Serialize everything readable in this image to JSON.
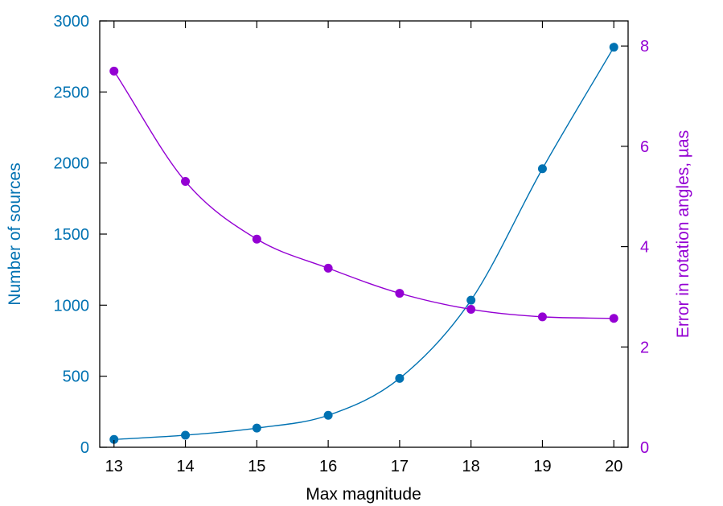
{
  "chart_data": {
    "type": "line",
    "xlabel": "Max magnitude",
    "x": [
      13,
      14,
      15,
      16,
      17,
      18,
      19,
      20
    ],
    "xlim": [
      12.8,
      20.2
    ],
    "xticks": [
      13,
      14,
      15,
      16,
      17,
      18,
      19,
      20
    ],
    "grid": false,
    "y_left": {
      "label": "Number of sources",
      "color": "#0072b2",
      "ylim": [
        0,
        3000
      ],
      "ticks": [
        0,
        500,
        1000,
        1500,
        2000,
        2500,
        3000
      ]
    },
    "y_right": {
      "label": "Error in rotation angles, µas",
      "color": "#9400d3",
      "ylim": [
        0,
        8.5
      ],
      "ticks": [
        0,
        2,
        4,
        6,
        8
      ]
    },
    "series": [
      {
        "axis": "left",
        "color": "#0072b2",
        "values": [
          55,
          85,
          135,
          225,
          485,
          1035,
          1960,
          2815
        ]
      },
      {
        "axis": "right",
        "color": "#9400d3",
        "values": [
          7.5,
          5.3,
          4.15,
          3.57,
          3.07,
          2.75,
          2.6,
          2.57
        ]
      }
    ]
  }
}
